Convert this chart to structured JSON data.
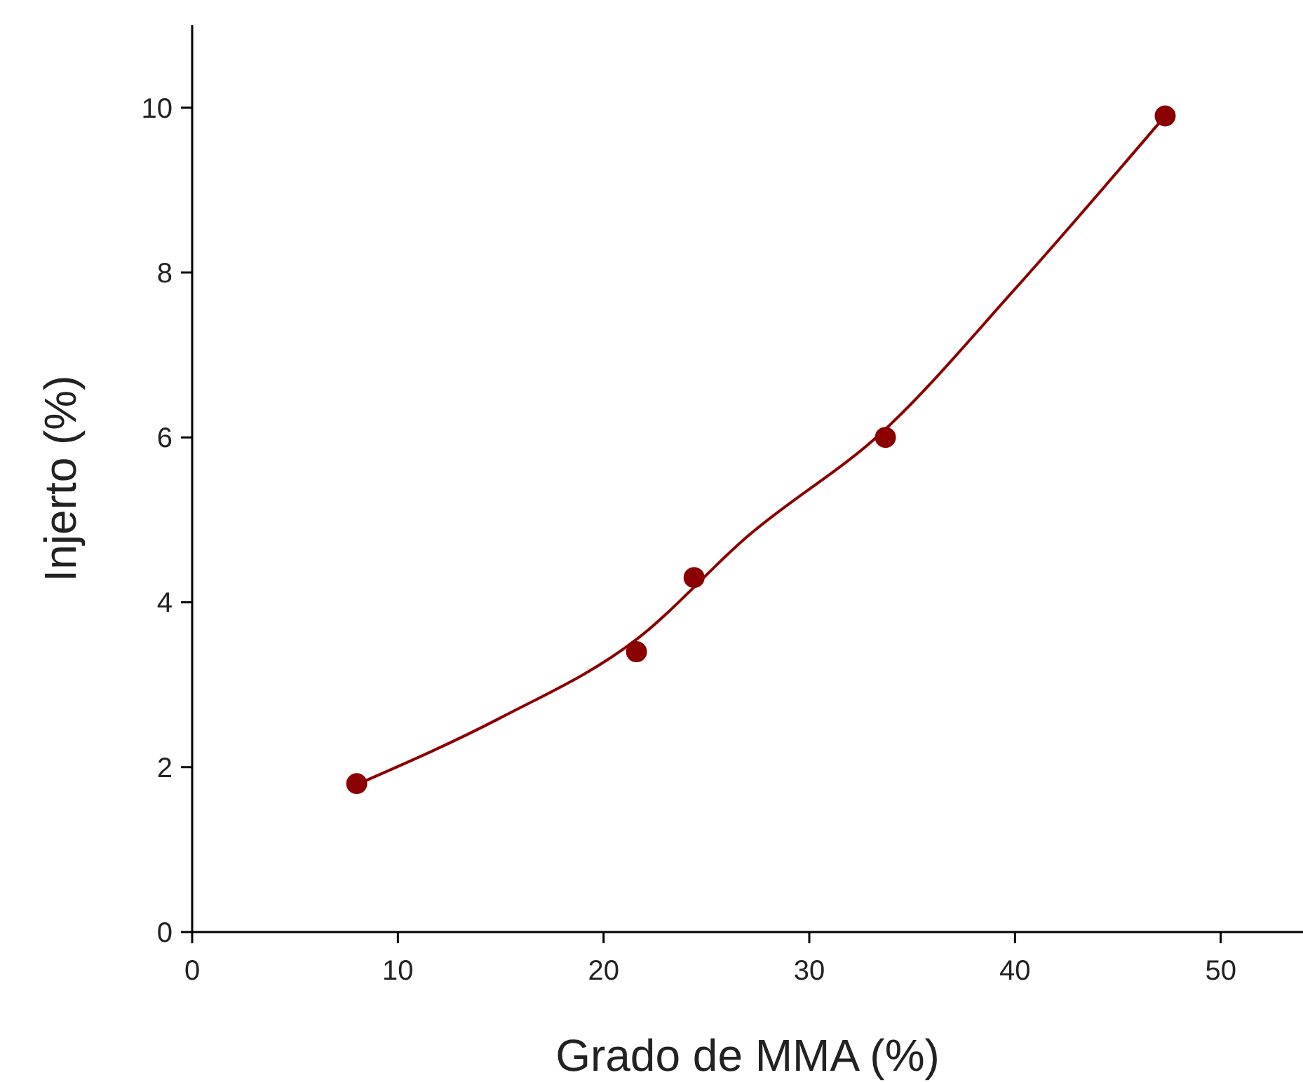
{
  "chart_data": {
    "type": "scatter",
    "xlabel": "Grado de MMA (%)",
    "ylabel": "Injerto (%)",
    "xlim": [
      0,
      54
    ],
    "xticks": [
      0,
      10,
      20,
      30,
      40,
      50
    ],
    "ylim": [
      0,
      11
    ],
    "yticks": [
      0,
      2,
      4,
      6,
      8,
      10
    ],
    "grid": false,
    "series": [
      {
        "color": "#8b0000",
        "marker": "circle",
        "x": [
          8.0,
          21.6,
          24.4,
          33.7,
          47.3
        ],
        "values": [
          1.8,
          3.4,
          4.3,
          6.0,
          9.9
        ]
      },
      {
        "type": "line",
        "color": "#8b0000",
        "marker": "none",
        "line_style": "solid",
        "x": [
          8.1,
          15,
          21.6,
          27,
          33.7,
          40,
          47.3
        ],
        "values": [
          1.8,
          2.6,
          3.55,
          4.8,
          6.1,
          7.8,
          9.9
        ]
      }
    ]
  }
}
